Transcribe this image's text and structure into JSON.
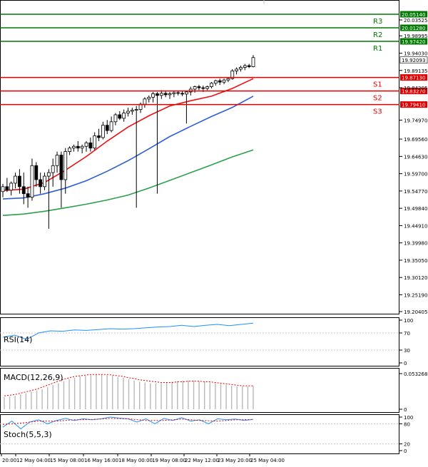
{
  "chart_data": {
    "type": "candlestick",
    "price_axis": {
      "ylim": [
        19.20405,
        20.0514
      ],
      "ticks": [
        "20.03525",
        "19.98995",
        "19.94030",
        "19.89135",
        "19.84205",
        "19.74970",
        "19.69560",
        "19.64630",
        "19.59700",
        "19.54770",
        "19.49840",
        "19.44910",
        "19.39980",
        "19.35050",
        "19.30120",
        "19.25190",
        "19.20405"
      ]
    },
    "current_price": "19.92093",
    "levels": [
      {
        "name": "R3",
        "value": 20.0514,
        "label": "20.05140",
        "kind": "resistance"
      },
      {
        "name": "R2",
        "value": 20.0128,
        "label": "20.01280",
        "kind": "resistance"
      },
      {
        "name": "R1",
        "value": 19.9742,
        "label": "19.97420",
        "kind": "resistance"
      },
      {
        "name": "S1",
        "value": 19.8713,
        "label": "19.87130",
        "kind": "support"
      },
      {
        "name": "S2",
        "value": 19.8327,
        "label": "19.83270",
        "kind": "support"
      },
      {
        "name": "S3",
        "value": 19.7941,
        "label": "19.79410",
        "kind": "support"
      }
    ],
    "x_labels": [
      "20:00",
      "12 May 04:00",
      "15 May 08:00",
      "16 May 16:00",
      "18 May 00:00",
      "19 May 08:00",
      "22 May 12:00",
      "23 May 20:00",
      "25 May 04:00"
    ],
    "candles": [
      [
        19.546,
        19.568,
        19.53,
        19.56
      ],
      [
        19.56,
        19.585,
        19.545,
        19.55
      ],
      [
        19.55,
        19.575,
        19.535,
        19.57
      ],
      [
        19.57,
        19.6,
        19.555,
        19.59
      ],
      [
        19.59,
        19.61,
        19.54,
        19.56
      ],
      [
        19.56,
        19.6,
        19.51,
        19.54
      ],
      [
        19.54,
        19.56,
        19.5,
        19.53
      ],
      [
        19.53,
        19.64,
        19.52,
        19.62
      ],
      [
        19.62,
        19.63,
        19.56,
        19.58
      ],
      [
        19.58,
        19.6,
        19.54,
        19.56
      ],
      [
        19.56,
        19.6,
        19.55,
        19.59
      ],
      [
        19.59,
        19.61,
        19.44,
        19.6
      ],
      [
        19.6,
        19.64,
        19.56,
        19.62
      ],
      [
        19.62,
        19.66,
        19.6,
        19.65
      ],
      [
        19.65,
        19.66,
        19.5,
        19.58
      ],
      [
        19.58,
        19.67,
        19.54,
        19.66
      ],
      [
        19.66,
        19.675,
        19.65,
        19.67
      ],
      [
        19.67,
        19.68,
        19.66,
        19.675
      ],
      [
        19.675,
        19.69,
        19.66,
        19.67
      ],
      [
        19.67,
        19.68,
        19.655,
        19.675
      ],
      [
        19.675,
        19.69,
        19.66,
        19.685
      ],
      [
        19.685,
        19.7,
        19.66,
        19.67
      ],
      [
        19.67,
        19.715,
        19.665,
        19.705
      ],
      [
        19.705,
        19.725,
        19.69,
        19.7
      ],
      [
        19.7,
        19.745,
        19.695,
        19.735
      ],
      [
        19.735,
        19.75,
        19.71,
        19.72
      ],
      [
        19.72,
        19.76,
        19.715,
        19.745
      ],
      [
        19.745,
        19.77,
        19.735,
        19.765
      ],
      [
        19.765,
        19.775,
        19.75,
        19.755
      ],
      [
        19.755,
        19.78,
        19.745,
        19.77
      ],
      [
        19.77,
        19.785,
        19.76,
        19.775
      ],
      [
        19.775,
        19.785,
        19.765,
        19.778
      ],
      [
        19.778,
        19.79,
        19.5,
        19.78
      ],
      [
        19.78,
        19.8,
        19.77,
        19.795
      ],
      [
        19.795,
        19.815,
        19.785,
        19.81
      ],
      [
        19.81,
        19.82,
        19.8,
        19.815
      ],
      [
        19.815,
        19.83,
        19.8,
        19.825
      ],
      [
        19.825,
        19.83,
        19.54,
        19.82
      ],
      [
        19.82,
        19.835,
        19.81,
        19.826
      ],
      [
        19.826,
        19.833,
        19.815,
        19.822
      ],
      [
        19.822,
        19.83,
        19.81,
        19.825
      ],
      [
        19.825,
        19.832,
        19.815,
        19.828
      ],
      [
        19.828,
        19.834,
        19.82,
        19.826
      ],
      [
        19.826,
        19.832,
        19.818,
        19.824
      ],
      [
        19.824,
        19.834,
        19.74,
        19.83
      ],
      [
        19.83,
        19.845,
        19.82,
        19.838
      ],
      [
        19.838,
        19.848,
        19.828,
        19.845
      ],
      [
        19.845,
        19.85,
        19.835,
        19.842
      ],
      [
        19.842,
        19.848,
        19.83,
        19.84
      ],
      [
        19.84,
        19.848,
        19.835,
        19.845
      ],
      [
        19.845,
        19.858,
        19.84,
        19.855
      ],
      [
        19.855,
        19.865,
        19.848,
        19.862
      ],
      [
        19.862,
        19.868,
        19.85,
        19.858
      ],
      [
        19.858,
        19.868,
        19.852,
        19.864
      ],
      [
        19.864,
        19.872,
        19.858,
        19.868
      ],
      [
        19.868,
        19.895,
        19.865,
        19.89
      ],
      [
        19.89,
        19.9,
        19.88,
        19.895
      ],
      [
        19.895,
        19.905,
        19.888,
        19.9
      ],
      [
        19.9,
        19.91,
        19.892,
        19.905
      ],
      [
        19.905,
        19.91,
        19.898,
        19.902
      ],
      [
        19.902,
        19.935,
        19.9,
        19.928
      ]
    ],
    "moving_averages": [
      {
        "color": "#ee1111",
        "values": [
          [
            0,
            19.549
          ],
          [
            5,
            19.553
          ],
          [
            10,
            19.572
          ],
          [
            15,
            19.607
          ],
          [
            20,
            19.646
          ],
          [
            25,
            19.69
          ],
          [
            30,
            19.73
          ],
          [
            35,
            19.762
          ],
          [
            40,
            19.79
          ],
          [
            45,
            19.805
          ],
          [
            50,
            19.818
          ],
          [
            55,
            19.84
          ],
          [
            60,
            19.868
          ]
        ]
      },
      {
        "color": "#2f5fd6",
        "values": [
          [
            0,
            19.525
          ],
          [
            5,
            19.528
          ],
          [
            10,
            19.54
          ],
          [
            15,
            19.556
          ],
          [
            20,
            19.577
          ],
          [
            25,
            19.604
          ],
          [
            30,
            19.634
          ],
          [
            35,
            19.668
          ],
          [
            40,
            19.703
          ],
          [
            45,
            19.732
          ],
          [
            50,
            19.76
          ],
          [
            55,
            19.786
          ],
          [
            60,
            19.818
          ]
        ]
      },
      {
        "color": "#2ca048",
        "values": [
          [
            0,
            19.478
          ],
          [
            5,
            19.482
          ],
          [
            10,
            19.49
          ],
          [
            15,
            19.5
          ],
          [
            20,
            19.51
          ],
          [
            25,
            19.522
          ],
          [
            30,
            19.536
          ],
          [
            35,
            19.556
          ],
          [
            40,
            19.578
          ],
          [
            45,
            19.6
          ],
          [
            50,
            19.622
          ],
          [
            55,
            19.645
          ],
          [
            60,
            19.665
          ]
        ]
      }
    ],
    "rsi": {
      "label": "RSI(14)",
      "ticks": [
        "100",
        "70",
        "30",
        "0"
      ],
      "ylim": [
        0,
        100
      ],
      "values": [
        [
          0,
          60
        ],
        [
          4,
          65
        ],
        [
          8,
          55
        ],
        [
          12,
          70
        ],
        [
          16,
          75
        ],
        [
          20,
          74
        ],
        [
          24,
          77
        ],
        [
          28,
          76
        ],
        [
          32,
          78
        ],
        [
          36,
          80
        ],
        [
          40,
          79
        ],
        [
          44,
          80
        ],
        [
          48,
          82
        ],
        [
          52,
          84
        ],
        [
          56,
          85
        ],
        [
          60,
          88
        ],
        [
          64,
          85
        ],
        [
          68,
          88
        ],
        [
          72,
          90
        ],
        [
          76,
          87
        ],
        [
          80,
          90
        ],
        [
          84,
          93
        ]
      ]
    },
    "macd": {
      "label": "MACD(12,26,9)",
      "ticks": [
        "0.053268",
        "0"
      ],
      "max": 0.053268,
      "histogram": [
        0.018,
        0.019,
        0.02,
        0.022,
        0.024,
        0.026,
        0.028,
        0.03,
        0.033,
        0.036,
        0.039,
        0.042,
        0.045,
        0.047,
        0.049,
        0.05,
        0.051,
        0.052,
        0.052,
        0.051,
        0.05,
        0.048,
        0.047,
        0.045,
        0.043,
        0.041,
        0.04,
        0.039,
        0.039,
        0.039,
        0.04,
        0.041,
        0.042,
        0.043,
        0.043,
        0.043,
        0.042,
        0.041,
        0.04,
        0.039,
        0.038,
        0.036,
        0.035,
        0.034,
        0.034,
        0.034,
        0.035
      ],
      "signal": [
        0.02,
        0.021,
        0.022,
        0.024,
        0.026,
        0.028,
        0.03,
        0.033,
        0.036,
        0.039,
        0.042,
        0.045,
        0.047,
        0.049,
        0.05,
        0.051,
        0.052,
        0.052,
        0.052,
        0.052,
        0.051,
        0.05,
        0.049,
        0.047,
        0.046,
        0.044,
        0.043,
        0.042,
        0.041,
        0.04,
        0.04,
        0.04,
        0.041,
        0.041,
        0.042,
        0.042,
        0.042,
        0.041,
        0.041,
        0.04,
        0.039,
        0.038,
        0.037,
        0.036,
        0.035,
        0.035,
        0.035
      ]
    },
    "stoch": {
      "label": "Stoch(5,5,3)",
      "ticks": [
        "100",
        "80",
        "20",
        "0"
      ],
      "ylim": [
        0,
        100
      ],
      "main": [
        [
          0,
          70
        ],
        [
          5,
          88
        ],
        [
          10,
          65
        ],
        [
          15,
          85
        ],
        [
          20,
          92
        ],
        [
          25,
          80
        ],
        [
          30,
          90
        ],
        [
          35,
          96
        ],
        [
          40,
          90
        ],
        [
          45,
          95
        ],
        [
          50,
          92
        ],
        [
          55,
          95
        ],
        [
          60,
          100
        ],
        [
          65,
          97
        ],
        [
          70,
          95
        ],
        [
          75,
          85
        ],
        [
          80,
          95
        ],
        [
          85,
          80
        ],
        [
          90,
          96
        ],
        [
          95,
          90
        ],
        [
          100,
          98
        ],
        [
          105,
          88
        ],
        [
          110,
          92
        ],
        [
          115,
          80
        ],
        [
          120,
          95
        ],
        [
          125,
          92
        ],
        [
          130,
          94
        ],
        [
          135,
          90
        ],
        [
          140,
          93
        ]
      ],
      "signal": [
        [
          0,
          78
        ],
        [
          10,
          82
        ],
        [
          20,
          88
        ],
        [
          30,
          88
        ],
        [
          40,
          92
        ],
        [
          50,
          93
        ],
        [
          60,
          96
        ],
        [
          70,
          95
        ],
        [
          80,
          90
        ],
        [
          90,
          90
        ],
        [
          100,
          94
        ],
        [
          110,
          90
        ],
        [
          120,
          88
        ],
        [
          130,
          92
        ],
        [
          140,
          93
        ]
      ]
    }
  }
}
